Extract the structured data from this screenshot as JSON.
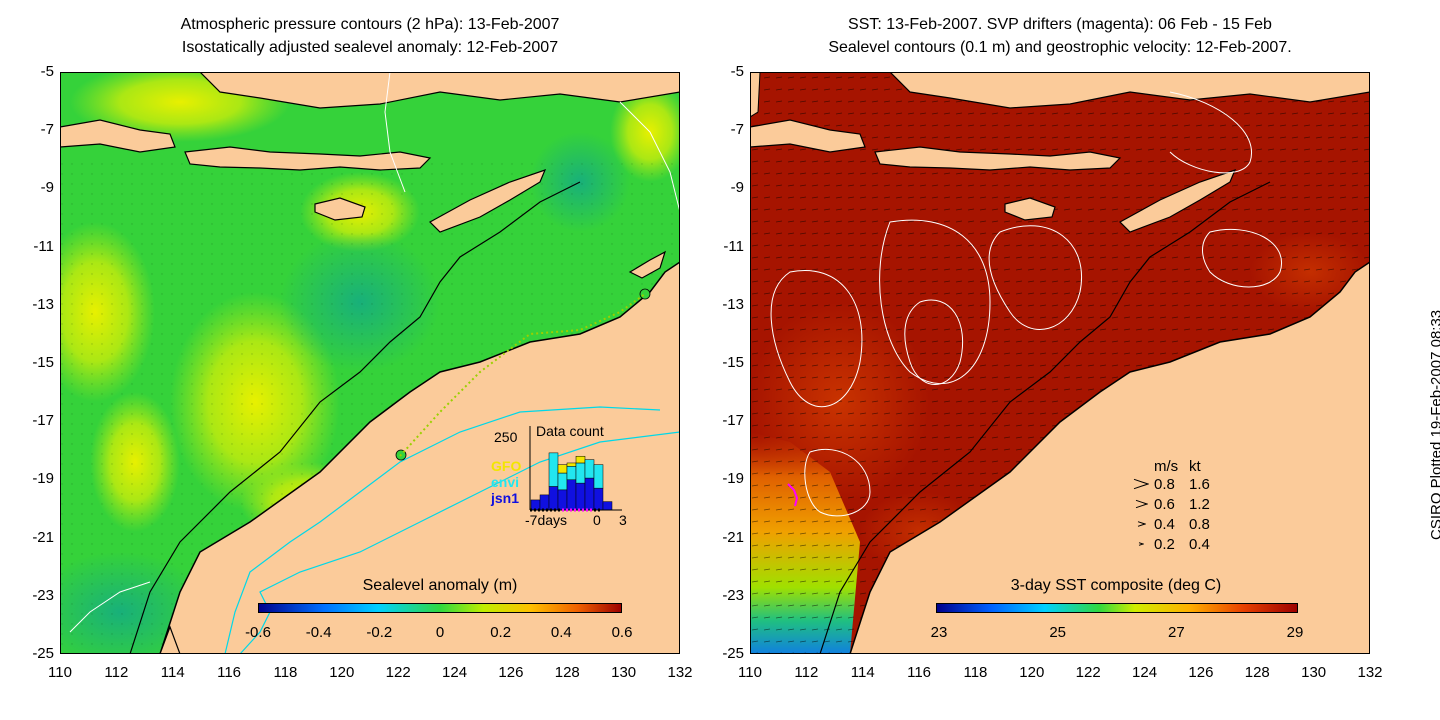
{
  "left_panel": {
    "title_line1": "Atmospheric pressure contours (2 hPa): 13-Feb-2007",
    "title_line2": "Isostatically adjusted sealevel anomaly: 12-Feb-2007",
    "y_ticks": [
      "-5",
      "-7",
      "-9",
      "-11",
      "-13",
      "-15",
      "-17",
      "-19",
      "-21",
      "-23",
      "-25"
    ],
    "x_ticks": [
      "110",
      "112",
      "114",
      "116",
      "118",
      "120",
      "122",
      "124",
      "126",
      "128",
      "130",
      "132"
    ],
    "colorbar_title": "Sealevel anomaly (m)",
    "colorbar_ticks": [
      "-0.6",
      "-0.4",
      "-0.2",
      "0",
      "0.2",
      "0.4",
      "0.6"
    ],
    "inset": {
      "title": "Data count",
      "ymax_label": "250",
      "legend": [
        {
          "label": "GFO",
          "color": "#f2e600"
        },
        {
          "label": "envi",
          "color": "#22e6f0"
        },
        {
          "label": "jsn1",
          "color": "#1010e0"
        }
      ],
      "x_labels": [
        "-7days",
        "0",
        "3"
      ],
      "bars": [
        {
          "jsn1": 30,
          "envi": 0,
          "gfo": 0
        },
        {
          "jsn1": 45,
          "envi": 0,
          "gfo": 0
        },
        {
          "jsn1": 70,
          "envi": 100,
          "gfo": 0
        },
        {
          "jsn1": 60,
          "envi": 50,
          "gfo": 25
        },
        {
          "jsn1": 90,
          "envi": 40,
          "gfo": 10
        },
        {
          "jsn1": 80,
          "envi": 60,
          "gfo": 20
        },
        {
          "jsn1": 95,
          "envi": 55,
          "gfo": 0
        },
        {
          "jsn1": 65,
          "envi": 70,
          "gfo": 0
        },
        {
          "jsn1": 25,
          "envi": 0,
          "gfo": 0
        }
      ]
    }
  },
  "right_panel": {
    "title_line1": "SST: 13-Feb-2007. SVP drifters (magenta): 06 Feb - 15 Feb",
    "title_line2": "Sealevel contours (0.1 m) and geostrophic velocity: 12-Feb-2007.",
    "y_ticks": [
      "-5",
      "-7",
      "-9",
      "-11",
      "-13",
      "-15",
      "-17",
      "-19",
      "-21",
      "-23",
      "-25"
    ],
    "x_ticks": [
      "110",
      "112",
      "114",
      "116",
      "118",
      "120",
      "122",
      "124",
      "126",
      "128",
      "130",
      "132"
    ],
    "colorbar_title": "3-day SST composite (deg C)",
    "colorbar_ticks": [
      "23",
      "25",
      "27",
      "29"
    ],
    "velocity_key": {
      "header_ms": "m/s",
      "header_kt": "kt",
      "rows": [
        {
          "ms": "0.8",
          "kt": "1.6"
        },
        {
          "ms": "0.6",
          "kt": "1.2"
        },
        {
          "ms": "0.4",
          "kt": "0.8"
        },
        {
          "ms": "0.2",
          "kt": "0.4"
        }
      ]
    }
  },
  "credit": "CSIRO Plotted 19-Feb-2007 08:33",
  "colors": {
    "land": "#fbcb9a",
    "coast": "#000000",
    "ssh_base": "#35d23a",
    "sst_base": "#a61400"
  }
}
